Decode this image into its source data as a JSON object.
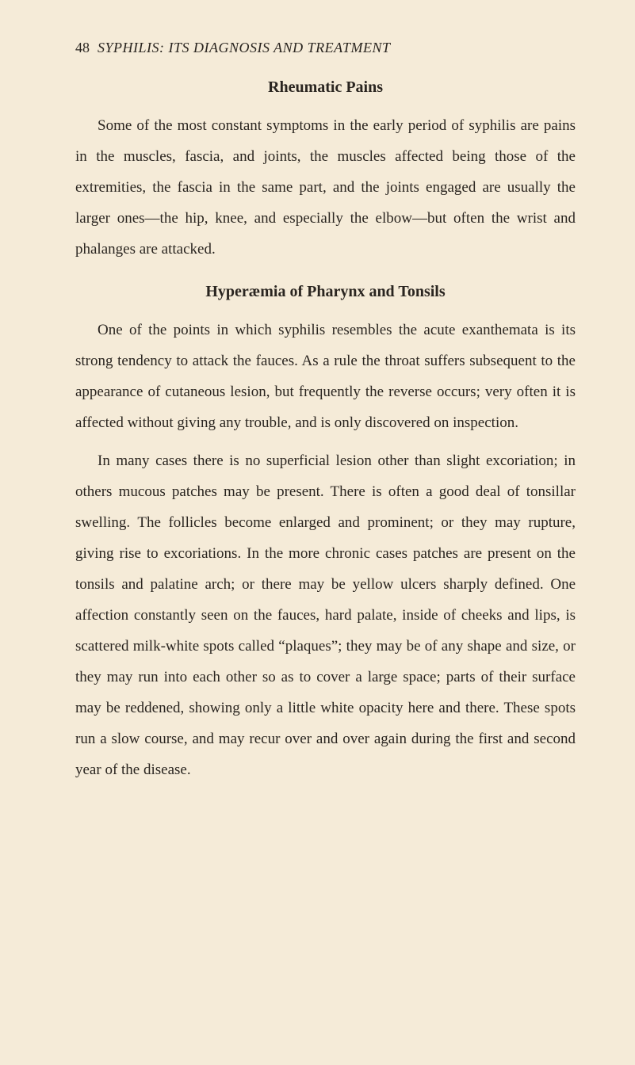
{
  "header": {
    "page_number": "48",
    "running_title": "SYPHILIS: ITS DIAGNOSIS AND TREATMENT"
  },
  "sections": {
    "s1": {
      "heading": "Rheumatic Pains",
      "p1": "Some of the most constant symptoms in the early period of syphilis are pains in the muscles, fascia, and joints, the muscles affected being those of the extremities, the fascia in the same part, and the joints engaged are usually the larger ones—the hip, knee, and especially the elbow—but often the wrist and phalanges are attacked."
    },
    "s2": {
      "heading": "Hyperæmia of Pharynx and Tonsils",
      "p1": "One of the points in which syphilis resembles the acute exanthemata is its strong tendency to attack the fauces. As a rule the throat suffers subsequent to the appearance of cutaneous lesion, but frequently the reverse occurs; very often it is affected without giving any trouble, and is only discovered on inspection.",
      "p2": "In many cases there is no superficial lesion other than slight excoriation; in others mucous patches may be present. There is often a good deal of tonsillar swelling. The follicles become enlarged and prominent; or they may rupture, giving rise to excoriations. In the more chronic cases patches are present on the tonsils and palatine arch; or there may be yellow ulcers sharply defined. One affection constantly seen on the fauces, hard palate, inside of cheeks and lips, is scattered milk-white spots called “plaques”; they may be of any shape and size, or they may run into each other so as to cover a large space; parts of their surface may be reddened, showing only a little white opacity here and there. These spots run a slow course, and may recur over and over again during the first and second year of the disease."
    }
  },
  "colors": {
    "page_bg": "#f5ebd8",
    "text": "#2a2520"
  }
}
